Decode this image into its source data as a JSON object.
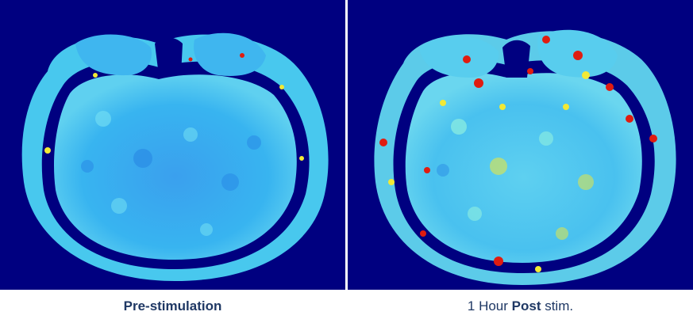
{
  "panels": {
    "pre": {
      "caption": "Pre-stimulation"
    },
    "post": {
      "caption_prefix": "1 Hour ",
      "caption_bold": "Post",
      "caption_suffix": " stim."
    }
  },
  "colors": {
    "background": "#000080",
    "tissue_base": "#2aa6f0",
    "tissue_light": "#5fd3f5",
    "hot_yellow": "#f2e935",
    "hot_red": "#e01c10",
    "caption": "#1f3864"
  }
}
